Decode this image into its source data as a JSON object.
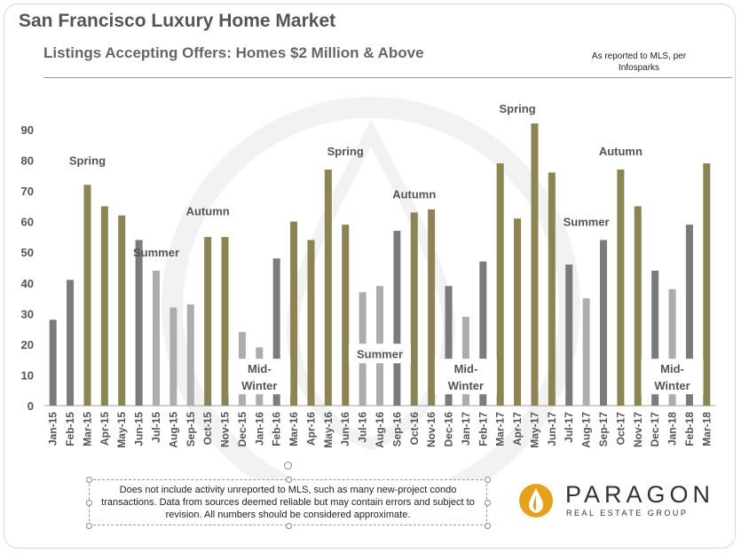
{
  "header": {
    "title": "San Francisco Luxury Home Market",
    "subtitle": "Listings Accepting Offers: Homes $2 Million & Above",
    "source_note": "As reported to MLS, per Infosparks"
  },
  "footer": {
    "disclaimer": "Does not include activity unreported to MLS, such as many new-project condo transactions. Data from sources deemed reliable but may contain errors and subject to revision.  All numbers should be considered approximate.",
    "logo_name": "PARAGON",
    "logo_sub": "REAL ESTATE GROUP",
    "logo_icon": "paragon-flame-logo"
  },
  "colors": {
    "spring": "#8c8455",
    "autumn": "#8c8455",
    "summer": "#adadad",
    "winter": "#7b7b7b",
    "other": "#7b7b7b",
    "text": "#555555"
  },
  "chart_data": {
    "type": "bar",
    "title": "Listings Accepting Offers: Homes $2 Million & Above",
    "ylim": [
      0,
      90
    ],
    "yticks": [
      0,
      10,
      20,
      30,
      40,
      50,
      60,
      70,
      80,
      90
    ],
    "grid": false,
    "categories": [
      "Jan-15",
      "Feb-15",
      "Mar-15",
      "Apr-15",
      "May-15",
      "Jun-15",
      "Jul-15",
      "Aug-15",
      "Sep-15",
      "Oct-15",
      "Nov-15",
      "Dec-15",
      "Jan-16",
      "Feb-16",
      "Mar-16",
      "Apr-16",
      "May-16",
      "Jun-16",
      "Jul-16",
      "Aug-16",
      "Sep-16",
      "Oct-16",
      "Nov-16",
      "Dec-16",
      "Jan-17",
      "Feb-17",
      "Mar-17",
      "Apr-17",
      "May-17",
      "Jun-17",
      "Jul-17",
      "Aug-17",
      "Sep-17",
      "Oct-17",
      "Nov-17",
      "Dec-17",
      "Jan-18",
      "Feb-18",
      "Mar-18"
    ],
    "values": [
      28,
      41,
      72,
      65,
      62,
      54,
      44,
      32,
      33,
      55,
      55,
      24,
      19,
      48,
      60,
      54,
      77,
      59,
      37,
      39,
      57,
      63,
      64,
      39,
      29,
      47,
      79,
      61,
      92,
      76,
      46,
      35,
      54,
      77,
      65,
      44,
      38,
      59,
      79
    ],
    "season": [
      "other",
      "other",
      "spring",
      "spring",
      "spring",
      "other",
      "summer",
      "summer",
      "summer",
      "autumn",
      "autumn",
      "summer",
      "summer",
      "other",
      "spring",
      "spring",
      "spring",
      "spring",
      "summer",
      "summer",
      "other",
      "autumn",
      "autumn",
      "other",
      "summer",
      "other",
      "spring",
      "spring",
      "spring",
      "spring",
      "other",
      "summer",
      "other",
      "autumn",
      "autumn",
      "other",
      "summer",
      "other",
      "spring"
    ],
    "annotations": [
      {
        "text": "Spring",
        "x": "Mar-15",
        "y": 80
      },
      {
        "text": "Summer",
        "x": "Jul-15",
        "y": 50
      },
      {
        "text": "Autumn",
        "x": "Oct-15",
        "y": 63.5
      },
      {
        "text": "Mid-Winter",
        "x": "Jan-16",
        "y": 9.5,
        "boxed": true
      },
      {
        "text": "Spring",
        "x": "Jun-16",
        "y": 83
      },
      {
        "text": "Summer",
        "x": "Aug-16",
        "y": 17,
        "boxed": true
      },
      {
        "text": "Autumn",
        "x": "Oct-16",
        "y": 69
      },
      {
        "text": "Mid-Winter",
        "x": "Jan-17",
        "y": 9.5,
        "boxed": true
      },
      {
        "text": "Spring",
        "x": "Apr-17",
        "y": 97
      },
      {
        "text": "Summer",
        "x": "Aug-17",
        "y": 60
      },
      {
        "text": "Autumn",
        "x": "Oct-17",
        "y": 83
      },
      {
        "text": "Mid-Winter",
        "x": "Jan-18",
        "y": 9.5,
        "boxed": true
      }
    ]
  }
}
